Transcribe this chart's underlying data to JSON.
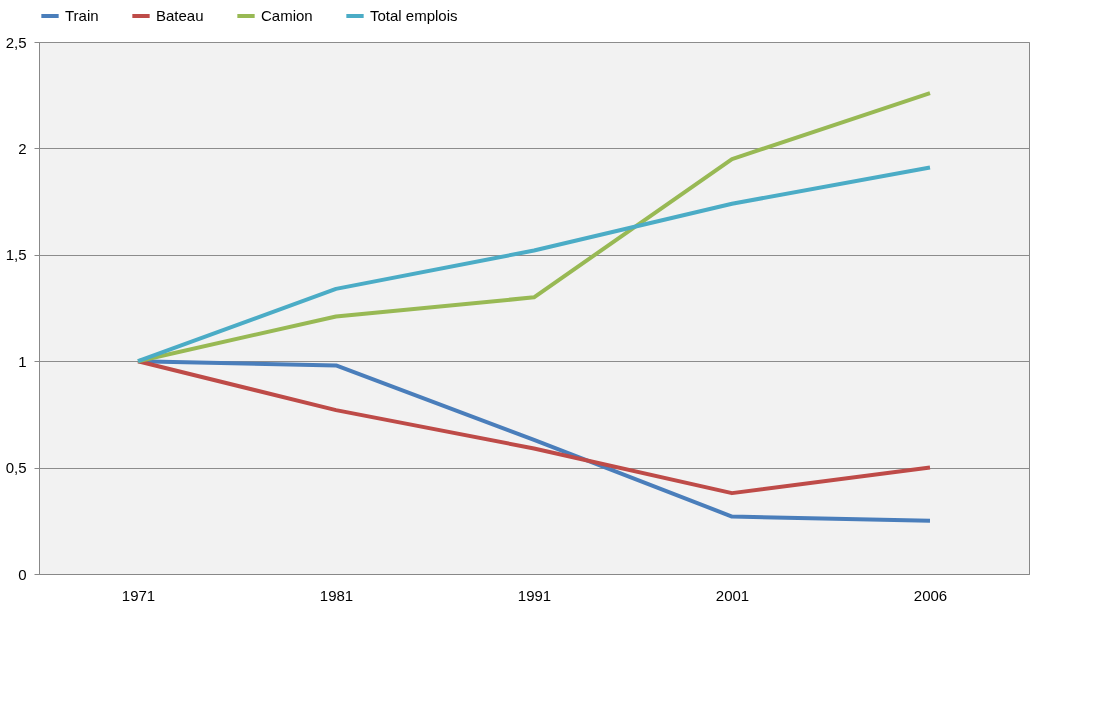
{
  "chart_data": {
    "type": "line",
    "categories": [
      "1971",
      "1981",
      "1991",
      "2001",
      "2006"
    ],
    "series": [
      {
        "name": "Train",
        "color": "#4a7ebb",
        "values": [
          1.0,
          0.98,
          0.63,
          0.27,
          0.25
        ]
      },
      {
        "name": "Bateau",
        "color": "#be4b48",
        "values": [
          1.0,
          0.77,
          0.59,
          0.38,
          0.5
        ]
      },
      {
        "name": "Camion",
        "color": "#98b954",
        "values": [
          1.0,
          1.21,
          1.3,
          1.95,
          2.26
        ]
      },
      {
        "name": "Total emplois",
        "color": "#4bacc6",
        "values": [
          1.0,
          1.34,
          1.52,
          1.74,
          1.91
        ]
      }
    ],
    "ylim": [
      0,
      2.5
    ],
    "yticks": [
      {
        "value": 0,
        "label": "0"
      },
      {
        "value": 0.5,
        "label": "0,5"
      },
      {
        "value": 1,
        "label": "1"
      },
      {
        "value": 1.5,
        "label": "1,5"
      },
      {
        "value": 2,
        "label": "2"
      },
      {
        "value": 2.5,
        "label": "2,5"
      }
    ],
    "grid": "y",
    "legend": "top",
    "marker": "none",
    "line_style": "solid"
  }
}
